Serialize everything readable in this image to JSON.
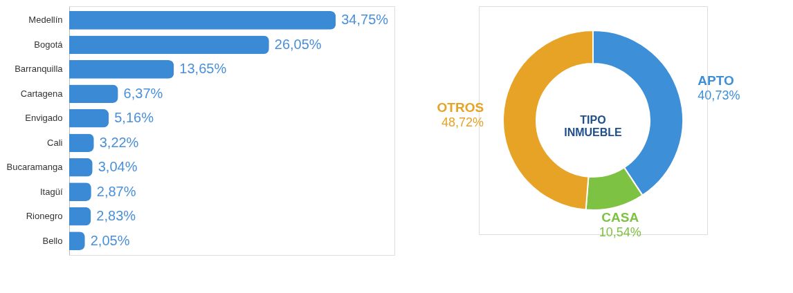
{
  "chart_data": [
    {
      "type": "bar",
      "orientation": "horizontal",
      "categories": [
        "Medellín",
        "Bogotá",
        "Barranquilla",
        "Cartagena",
        "Envigado",
        "Cali",
        "Bucaramanga",
        "Itagüí",
        "Rionegro",
        "Bello"
      ],
      "values": [
        34.75,
        26.05,
        13.65,
        6.37,
        5.16,
        3.22,
        3.04,
        2.87,
        2.83,
        2.05
      ],
      "value_labels": [
        "34,75%",
        "26,05%",
        "13,65%",
        "6,37%",
        "5,16%",
        "3,22%",
        "3,04%",
        "2,87%",
        "2,83%",
        "2,05%"
      ],
      "color": "#3a8ad6"
    },
    {
      "type": "donut",
      "title": "TIPO INMUEBLE",
      "categories": [
        "APTO",
        "CASA",
        "OTROS"
      ],
      "values": [
        40.73,
        10.54,
        48.72
      ],
      "value_labels": [
        "40,73%",
        "10,54%",
        "48,72%"
      ],
      "colors": [
        "#3d8fd8",
        "#7dc242",
        "#e6a325"
      ],
      "legend": false
    }
  ]
}
